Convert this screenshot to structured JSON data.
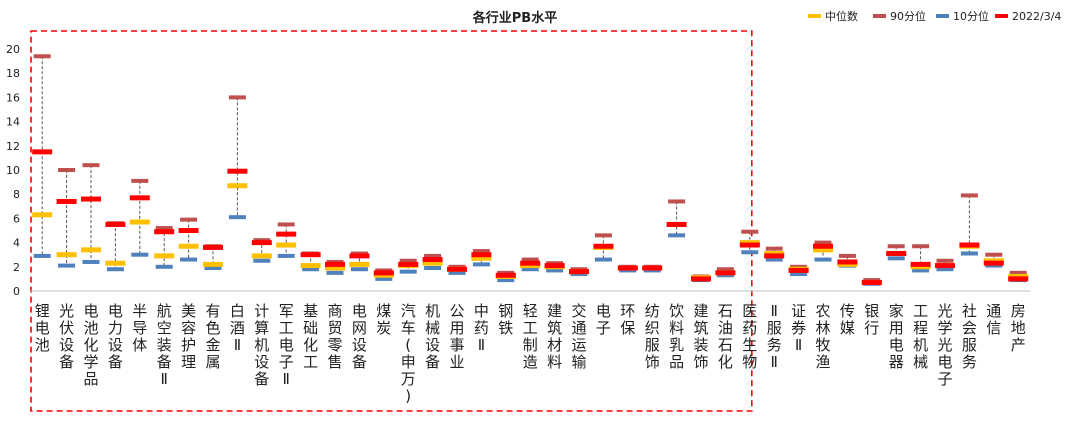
{
  "chart_data": {
    "type": "range-marker",
    "title": "各行业PB水平",
    "ylim": [
      0,
      20
    ],
    "yticks": [
      0,
      2,
      4,
      6,
      8,
      10,
      12,
      14,
      16,
      18,
      20
    ],
    "grid": false,
    "legend_position": "top-right",
    "series": [
      {
        "key": "median",
        "name": "中位数",
        "color": "#FFC000"
      },
      {
        "key": "p90",
        "name": "90分位",
        "color": "#C0504D"
      },
      {
        "key": "p10",
        "name": "10分位",
        "color": "#4F81BD"
      },
      {
        "key": "current",
        "name": "2022/3/4",
        "color": "#FF0000"
      }
    ],
    "highlight_box": {
      "style": "dashed",
      "color": "#FF0000",
      "category_range": [
        0,
        30
      ]
    },
    "categories": [
      "锂电池",
      "光伏设备",
      "电池化学品",
      "电力设备",
      "半导体",
      "航空装备Ⅱ",
      "美容护理",
      "有色金属",
      "白酒Ⅱ",
      "计算机设备",
      "军工电子Ⅱ",
      "基础化工",
      "商贸零售",
      "电网设备",
      "煤炭",
      "汽车(申万)",
      "机械设备",
      "公用事业",
      "中药Ⅱ",
      "钢铁",
      "轻工制造",
      "建筑材料",
      "交通运输",
      "电子",
      "环保",
      "纺织服饰",
      "饮料乳品",
      "建筑装饰",
      "石油石化",
      "医药生物",
      "Ⅱ服务Ⅱ",
      "证券Ⅱ",
      "农林牧渔",
      "传媒",
      "银行",
      "家用电器",
      "工程机械",
      "光学光电子",
      "社会服务",
      "通信",
      "房地产"
    ],
    "p90": [
      19.4,
      10.0,
      10.4,
      5.6,
      9.1,
      5.2,
      5.9,
      3.7,
      16.0,
      4.2,
      5.5,
      3.1,
      2.4,
      3.1,
      1.7,
      2.5,
      2.9,
      2.0,
      3.3,
      1.5,
      2.6,
      2.3,
      1.8,
      4.6,
      2.0,
      2.0,
      7.4,
      1.2,
      1.8,
      4.9,
      3.5,
      2.0,
      4.0,
      2.9,
      0.9,
      3.7,
      3.7,
      2.5,
      7.9,
      3.0,
      1.5
    ],
    "median": [
      6.3,
      3.0,
      3.4,
      2.3,
      5.7,
      2.9,
      3.7,
      2.2,
      8.7,
      2.9,
      3.8,
      2.1,
      1.9,
      2.2,
      1.3,
      2.1,
      2.3,
      1.8,
      2.7,
      1.2,
      2.1,
      2.0,
      1.6,
      3.6,
      1.9,
      1.9,
      5.5,
      1.1,
      1.5,
      4.0,
      3.1,
      1.8,
      3.4,
      2.2,
      0.7,
      3.1,
      2.0,
      2.1,
      3.7,
      2.5,
      1.2
    ],
    "p10": [
      2.9,
      2.1,
      2.4,
      1.8,
      3.0,
      2.0,
      2.6,
      1.9,
      6.1,
      2.5,
      2.9,
      1.8,
      1.5,
      1.8,
      1.0,
      1.6,
      1.9,
      1.5,
      2.2,
      0.9,
      1.8,
      1.7,
      1.4,
      2.6,
      1.7,
      1.7,
      4.6,
      0.9,
      1.3,
      3.2,
      2.6,
      1.4,
      2.6,
      2.1,
      0.6,
      2.7,
      1.7,
      1.8,
      3.1,
      2.1,
      0.9
    ],
    "current": [
      11.5,
      7.4,
      7.6,
      5.5,
      7.7,
      4.9,
      5.0,
      3.6,
      9.9,
      4.0,
      4.7,
      3.0,
      2.2,
      2.9,
      1.5,
      2.2,
      2.6,
      1.8,
      3.0,
      1.3,
      2.3,
      2.1,
      1.6,
      3.7,
      1.9,
      1.9,
      5.5,
      1.0,
      1.5,
      3.8,
      2.9,
      1.7,
      3.7,
      2.4,
      0.7,
      3.1,
      2.2,
      2.1,
      3.8,
      2.3,
      1.0
    ]
  }
}
